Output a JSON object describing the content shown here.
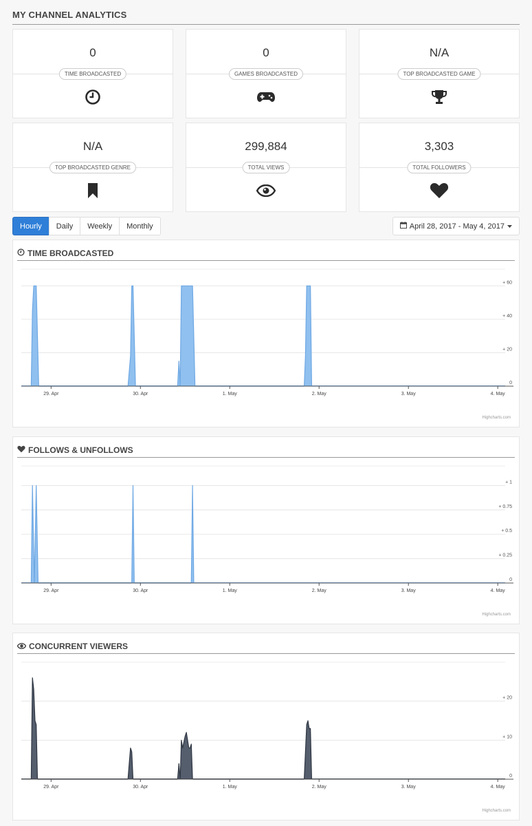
{
  "page_title": "MY CHANNEL ANALYTICS",
  "stats": [
    {
      "value": "0",
      "label": "TIME BROADCASTED",
      "icon": "clock-icon"
    },
    {
      "value": "0",
      "label": "GAMES BROADCASTED",
      "icon": "gamepad-icon"
    },
    {
      "value": "N/A",
      "label": "TOP BROADCASTED GAME",
      "icon": "trophy-icon"
    },
    {
      "value": "N/A",
      "label": "TOP BROADCASTED GENRE",
      "icon": "bookmark-icon"
    },
    {
      "value": "299,884",
      "label": "TOTAL VIEWS",
      "icon": "eye-icon"
    },
    {
      "value": "3,303",
      "label": "TOTAL FOLLOWERS",
      "icon": "heart-icon"
    }
  ],
  "tabs": [
    {
      "label": "Hourly",
      "active": true
    },
    {
      "label": "Daily",
      "active": false
    },
    {
      "label": "Weekly",
      "active": false
    },
    {
      "label": "Monthly",
      "active": false
    }
  ],
  "date_range": "April 28, 2017 - May 4, 2017",
  "credit": "Highcharts.com",
  "colors": {
    "accent": "#2f7fd8",
    "series_blue": "#90c0ef",
    "series_blue_stroke": "#6ea8e4",
    "series_dark": "#555e6d",
    "series_dark_stroke": "#2e3642"
  },
  "chart_data": [
    {
      "type": "area",
      "title": "TIME BROADCASTED",
      "icon": "clock-icon",
      "x_range": [
        "2017-04-28T16:00",
        "2017-05-04T02:00"
      ],
      "x_ticks": [
        {
          "label": "29. Apr",
          "at": "2017-04-29T00:00"
        },
        {
          "label": "30. Apr",
          "at": "2017-04-30T00:00"
        },
        {
          "label": "1. May",
          "at": "2017-05-01T00:00"
        },
        {
          "label": "2. May",
          "at": "2017-05-02T00:00"
        },
        {
          "label": "3. May",
          "at": "2017-05-03T00:00"
        },
        {
          "label": "4. May",
          "at": "2017-05-04T00:00"
        }
      ],
      "y_ticks": [
        "0",
        "+ 20",
        "+ 40",
        "+ 60"
      ],
      "ylim": [
        0,
        70
      ],
      "grid": true,
      "color": "#90c0ef",
      "stroke": "#6ea8e4",
      "points": [
        [
          "2017-04-28T18:40",
          0
        ],
        [
          "2017-04-28T19:00",
          45
        ],
        [
          "2017-04-28T19:20",
          60
        ],
        [
          "2017-04-28T20:00",
          60
        ],
        [
          "2017-04-28T20:40",
          0
        ],
        [
          "2017-04-29T20:40",
          0
        ],
        [
          "2017-04-29T21:20",
          18
        ],
        [
          "2017-04-29T21:40",
          60
        ],
        [
          "2017-04-29T22:00",
          60
        ],
        [
          "2017-04-29T22:40",
          0
        ],
        [
          "2017-04-30T10:00",
          0
        ],
        [
          "2017-04-30T10:20",
          15
        ],
        [
          "2017-04-30T10:40",
          0
        ],
        [
          "2017-04-30T11:00",
          60
        ],
        [
          "2017-04-30T14:00",
          60
        ],
        [
          "2017-04-30T14:40",
          0
        ],
        [
          "2017-05-01T20:00",
          0
        ],
        [
          "2017-05-01T20:20",
          18
        ],
        [
          "2017-05-01T20:40",
          60
        ],
        [
          "2017-05-01T21:40",
          60
        ],
        [
          "2017-05-01T22:00",
          0
        ]
      ]
    },
    {
      "type": "area",
      "title": "FOLLOWS & UNFOLLOWS",
      "icon": "heart-icon",
      "x_range": [
        "2017-04-28T16:00",
        "2017-05-04T02:00"
      ],
      "x_ticks": [
        {
          "label": "29. Apr",
          "at": "2017-04-29T00:00"
        },
        {
          "label": "30. Apr",
          "at": "2017-04-30T00:00"
        },
        {
          "label": "1. May",
          "at": "2017-05-01T00:00"
        },
        {
          "label": "2. May",
          "at": "2017-05-02T00:00"
        },
        {
          "label": "3. May",
          "at": "2017-05-03T00:00"
        },
        {
          "label": "4. May",
          "at": "2017-05-04T00:00"
        }
      ],
      "y_ticks": [
        "0",
        "+ 0.25",
        "+ 0.5",
        "+ 0.75",
        "+ 1"
      ],
      "ylim": [
        0,
        1.2
      ],
      "grid": true,
      "color": "#90c0ef",
      "stroke": "#6ea8e4",
      "points": [
        [
          "2017-04-28T18:40",
          0
        ],
        [
          "2017-04-28T19:00",
          1
        ],
        [
          "2017-04-28T19:30",
          0
        ],
        [
          "2017-04-28T19:30",
          0
        ],
        [
          "2017-04-28T20:00",
          1
        ],
        [
          "2017-04-28T20:30",
          0
        ],
        [
          "2017-04-29T21:40",
          0
        ],
        [
          "2017-04-29T22:00",
          1
        ],
        [
          "2017-04-29T22:20",
          0
        ],
        [
          "2017-04-30T13:40",
          0
        ],
        [
          "2017-04-30T14:00",
          1
        ],
        [
          "2017-04-30T14:20",
          0
        ]
      ]
    },
    {
      "type": "area",
      "title": "CONCURRENT VIEWERS",
      "icon": "eye-icon",
      "x_range": [
        "2017-04-28T16:00",
        "2017-05-04T02:00"
      ],
      "x_ticks": [
        {
          "label": "29. Apr",
          "at": "2017-04-29T00:00"
        },
        {
          "label": "30. Apr",
          "at": "2017-04-30T00:00"
        },
        {
          "label": "1. May",
          "at": "2017-05-01T00:00"
        },
        {
          "label": "2. May",
          "at": "2017-05-02T00:00"
        },
        {
          "label": "3. May",
          "at": "2017-05-03T00:00"
        },
        {
          "label": "4. May",
          "at": "2017-05-04T00:00"
        }
      ],
      "y_ticks": [
        "0",
        "+ 10",
        "+ 20"
      ],
      "ylim": [
        0,
        30
      ],
      "grid": true,
      "color": "#555e6d",
      "stroke": "#2e3642",
      "points": [
        [
          "2017-04-28T18:40",
          0
        ],
        [
          "2017-04-28T19:00",
          26
        ],
        [
          "2017-04-28T19:20",
          23
        ],
        [
          "2017-04-28T19:40",
          15
        ],
        [
          "2017-04-28T20:00",
          14
        ],
        [
          "2017-04-28T20:20",
          0
        ],
        [
          "2017-04-29T20:40",
          0
        ],
        [
          "2017-04-29T21:00",
          4
        ],
        [
          "2017-04-29T21:20",
          8
        ],
        [
          "2017-04-29T21:40",
          7
        ],
        [
          "2017-04-29T22:00",
          0
        ],
        [
          "2017-04-30T10:00",
          0
        ],
        [
          "2017-04-30T10:20",
          4
        ],
        [
          "2017-04-30T10:40",
          0
        ],
        [
          "2017-04-30T11:00",
          10
        ],
        [
          "2017-04-30T11:20",
          8
        ],
        [
          "2017-04-30T12:00",
          11
        ],
        [
          "2017-04-30T12:20",
          12
        ],
        [
          "2017-04-30T12:40",
          10
        ],
        [
          "2017-04-30T13:00",
          8
        ],
        [
          "2017-04-30T13:20",
          8
        ],
        [
          "2017-04-30T13:40",
          9
        ],
        [
          "2017-04-30T14:00",
          0
        ],
        [
          "2017-05-01T20:00",
          0
        ],
        [
          "2017-05-01T20:20",
          7
        ],
        [
          "2017-05-01T20:40",
          14
        ],
        [
          "2017-05-01T21:00",
          15
        ],
        [
          "2017-05-01T21:20",
          13
        ],
        [
          "2017-05-01T21:40",
          13
        ],
        [
          "2017-05-01T22:00",
          0
        ]
      ]
    }
  ]
}
